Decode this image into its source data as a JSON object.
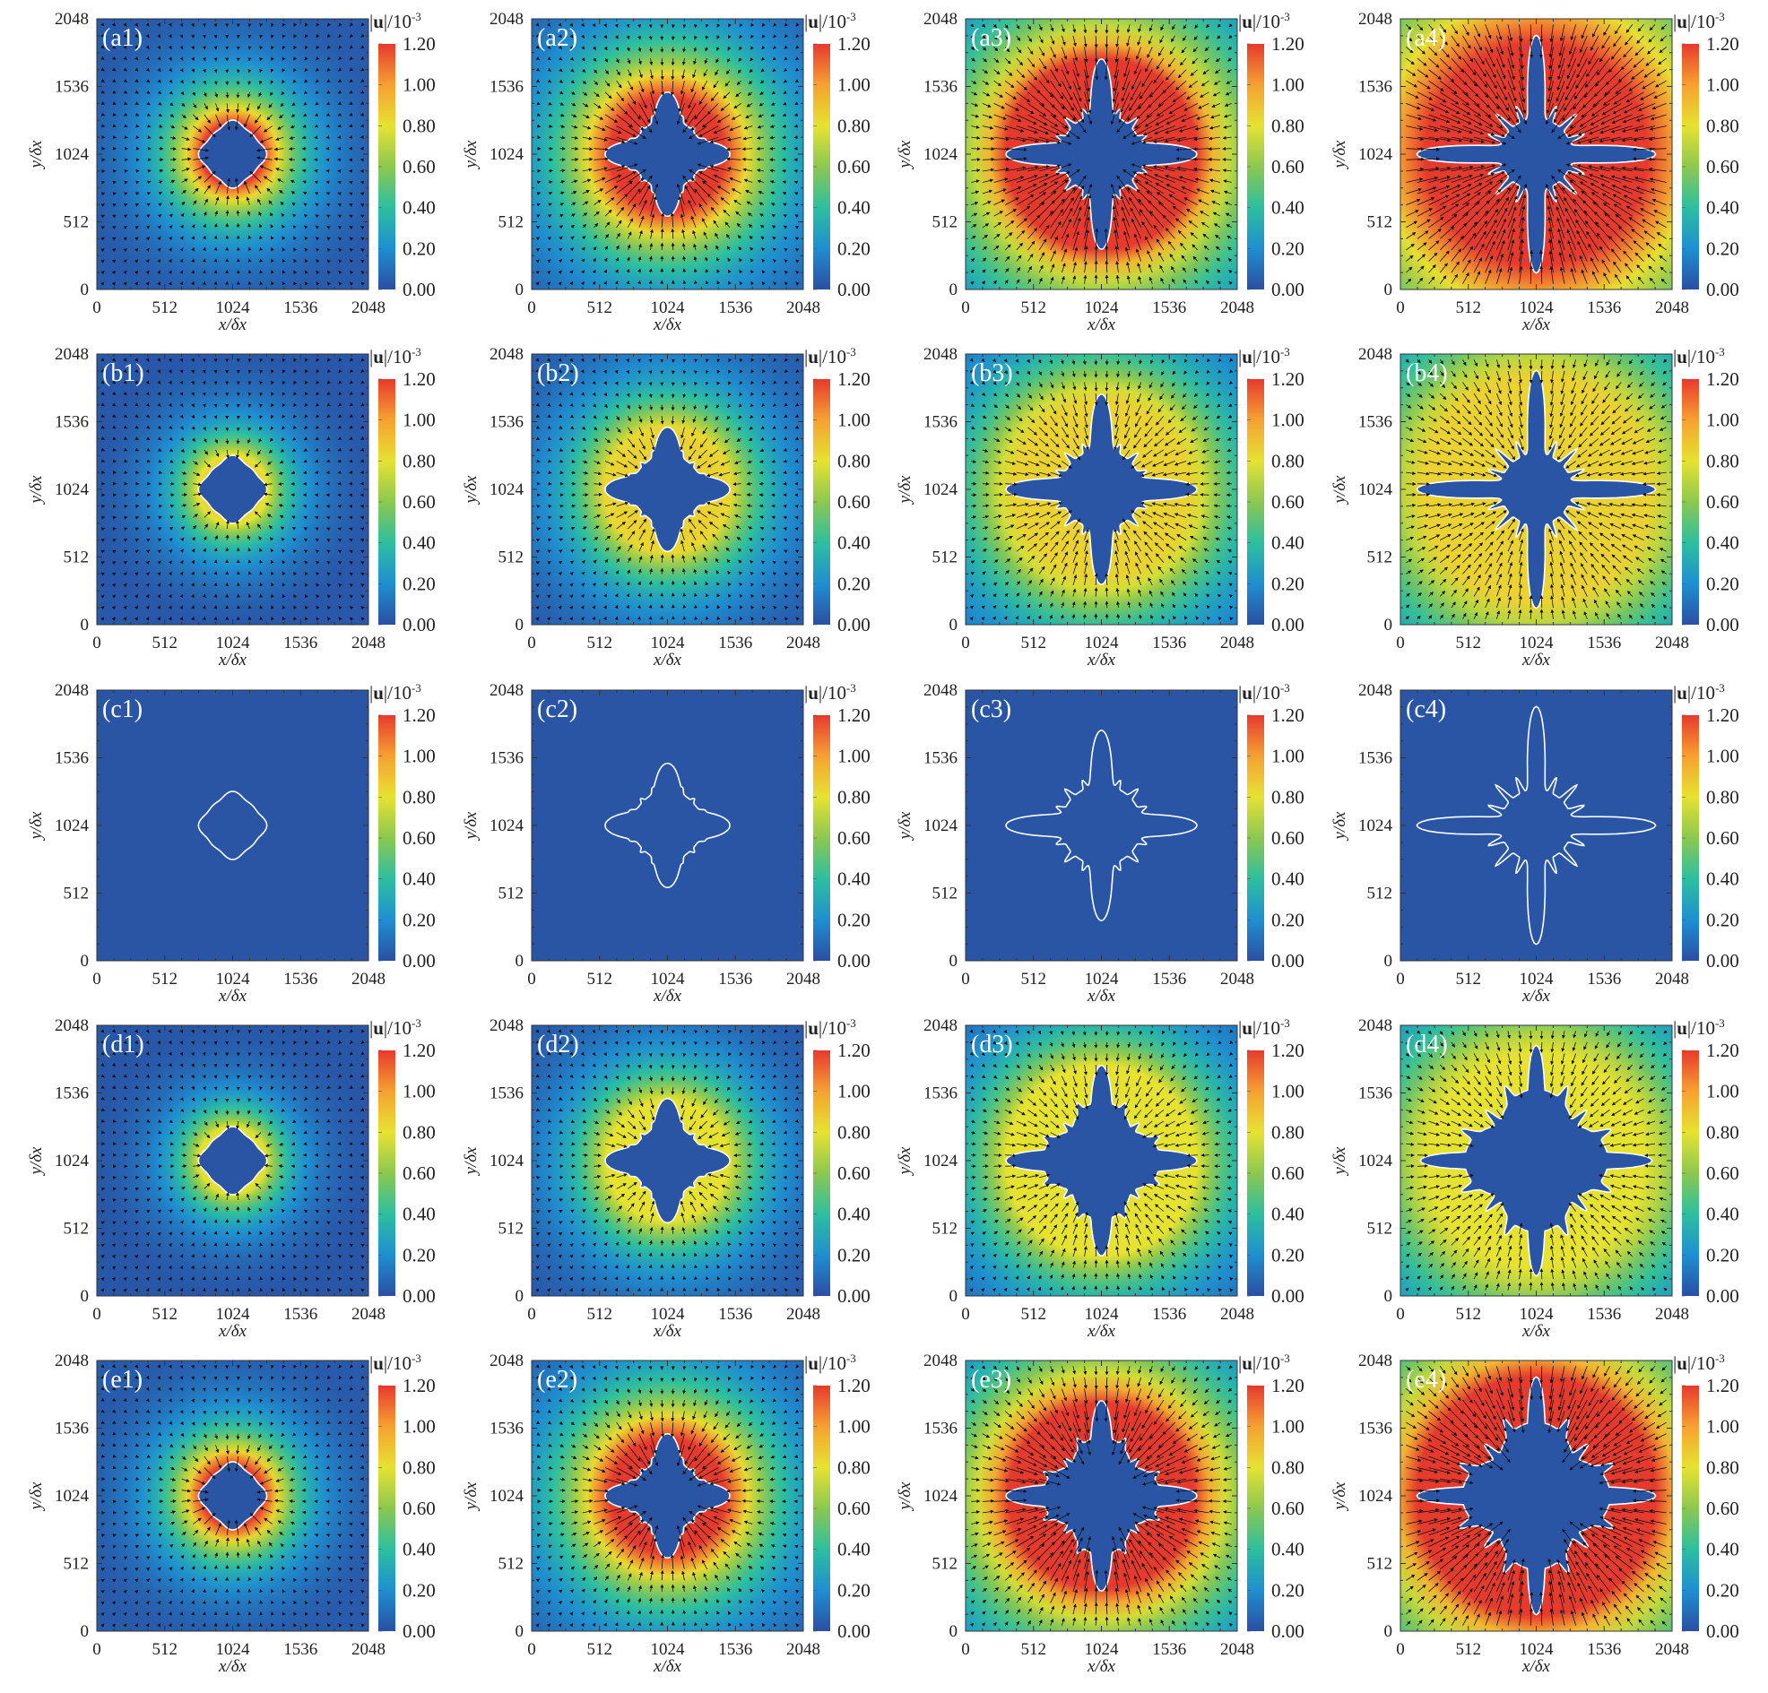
{
  "figure": {
    "rows": [
      "a",
      "b",
      "c",
      "d",
      "e"
    ],
    "cols": [
      "1",
      "2",
      "3",
      "4"
    ]
  },
  "colors": {
    "background_field": "#2a55a5",
    "interface": "#ffffff",
    "arrows": "#111111",
    "colormap": [
      "#2a4fa3",
      "#1f8fd0",
      "#2dbf9f",
      "#8cc850",
      "#e6e232",
      "#f6a132",
      "#e63a2e"
    ]
  },
  "shared": {
    "xlabel": "x/δx",
    "ylabel": "y/δx",
    "xticks": [
      "0",
      "512",
      "1024",
      "1536",
      "2048"
    ],
    "yticks": [
      "0",
      "512",
      "1024",
      "1536",
      "2048"
    ],
    "xlim": [
      0,
      2048
    ],
    "ylim": [
      0,
      2048
    ],
    "colorbar": {
      "symbol_open": "|",
      "symbol": "u",
      "symbol_close": "|",
      "unit": "/10",
      "exponent": "-3",
      "range": [
        0.0,
        1.2
      ],
      "ticks": [
        "0.00",
        "0.20",
        "0.40",
        "0.60",
        "0.80",
        "1.00",
        "1.20"
      ]
    }
  },
  "chart_data": [
    {
      "type": "heatmap",
      "panel_label": "(a1)",
      "overlay": "velocity vectors",
      "colormap": "jet"
    },
    {
      "type": "heatmap",
      "panel_label": "(a2)",
      "overlay": "velocity vectors",
      "colormap": "jet"
    },
    {
      "type": "heatmap",
      "panel_label": "(a3)",
      "overlay": "velocity vectors",
      "colormap": "jet"
    },
    {
      "type": "heatmap",
      "panel_label": "(a4)",
      "overlay": "velocity vectors",
      "colormap": "jet"
    },
    {
      "type": "heatmap",
      "panel_label": "(b1)",
      "overlay": "velocity vectors",
      "colormap": "jet"
    },
    {
      "type": "heatmap",
      "panel_label": "(b2)",
      "overlay": "velocity vectors",
      "colormap": "jet"
    },
    {
      "type": "heatmap",
      "panel_label": "(b3)",
      "overlay": "velocity vectors",
      "colormap": "jet"
    },
    {
      "type": "heatmap",
      "panel_label": "(b4)",
      "overlay": "velocity vectors",
      "colormap": "jet"
    },
    {
      "type": "heatmap",
      "panel_label": "(c1)",
      "overlay": "none",
      "colormap": "jet"
    },
    {
      "type": "heatmap",
      "panel_label": "(c2)",
      "overlay": "none",
      "colormap": "jet"
    },
    {
      "type": "heatmap",
      "panel_label": "(c3)",
      "overlay": "none",
      "colormap": "jet"
    },
    {
      "type": "heatmap",
      "panel_label": "(c4)",
      "overlay": "none",
      "colormap": "jet"
    },
    {
      "type": "heatmap",
      "panel_label": "(d1)",
      "overlay": "velocity vectors",
      "colormap": "jet"
    },
    {
      "type": "heatmap",
      "panel_label": "(d2)",
      "overlay": "velocity vectors",
      "colormap": "jet"
    },
    {
      "type": "heatmap",
      "panel_label": "(d3)",
      "overlay": "velocity vectors",
      "colormap": "jet"
    },
    {
      "type": "heatmap",
      "panel_label": "(d4)",
      "overlay": "velocity vectors",
      "colormap": "jet"
    },
    {
      "type": "heatmap",
      "panel_label": "(e1)",
      "overlay": "velocity vectors",
      "colormap": "jet"
    },
    {
      "type": "heatmap",
      "panel_label": "(e2)",
      "overlay": "velocity vectors",
      "colormap": "jet"
    },
    {
      "type": "heatmap",
      "panel_label": "(e3)",
      "overlay": "velocity vectors",
      "colormap": "jet"
    },
    {
      "type": "heatmap",
      "panel_label": "(e4)",
      "overlay": "velocity vectors",
      "colormap": "jet"
    }
  ]
}
